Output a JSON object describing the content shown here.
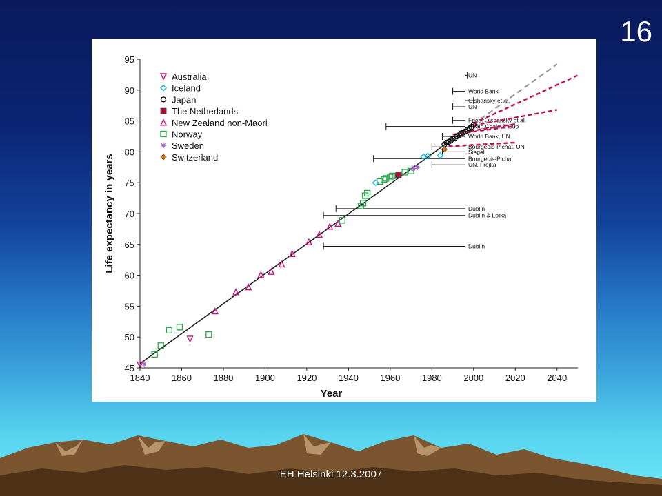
{
  "slide": {
    "number": "16",
    "footer": "EH Helsinki 12.3.2007"
  },
  "colors": {
    "australia": "#c2187a",
    "iceland": "#1fb4d6",
    "japan": "#111111",
    "netherlands": "#b0103a",
    "nz": "#c2187a",
    "norway": "#2aa84a",
    "sweden": "#a06bc0",
    "switzerland": "#e07a10",
    "trend": "#222222",
    "projection": "#b8145a"
  },
  "chart_data": {
    "type": "scatter",
    "xlabel": "Year",
    "ylabel": "Life expectancy in years",
    "xlim": [
      1840,
      2050
    ],
    "ylim": [
      45,
      95
    ],
    "xticks": [
      1840,
      1860,
      1880,
      1900,
      1920,
      1940,
      1960,
      1980,
      2000,
      2020,
      2040
    ],
    "yticks": [
      45,
      50,
      55,
      60,
      65,
      70,
      75,
      80,
      85,
      90,
      95
    ],
    "legend_position": "top-left",
    "legend": [
      {
        "key": "australia",
        "label": "Australia",
        "marker": "triangle-down"
      },
      {
        "key": "iceland",
        "label": "Iceland",
        "marker": "diamond"
      },
      {
        "key": "japan",
        "label": "Japan",
        "marker": "circle"
      },
      {
        "key": "netherlands",
        "label": "The Netherlands",
        "marker": "square-filled"
      },
      {
        "key": "nz",
        "label": "New Zealand non-Maori",
        "marker": "triangle-up"
      },
      {
        "key": "norway",
        "label": "Norway",
        "marker": "square"
      },
      {
        "key": "sweden",
        "label": "Sweden",
        "marker": "star"
      },
      {
        "key": "switzerland",
        "label": "Switzerland",
        "marker": "diamond-filled"
      }
    ],
    "series": [
      {
        "key": "australia",
        "points": [
          [
            1864,
            49.7
          ],
          [
            1840,
            45.5
          ]
        ]
      },
      {
        "key": "nz",
        "points": [
          [
            1876,
            54.2
          ],
          [
            1886,
            57.3
          ],
          [
            1892,
            58.1
          ],
          [
            1898,
            60.1
          ],
          [
            1903,
            60.6
          ],
          [
            1908,
            61.8
          ],
          [
            1913,
            63.5
          ],
          [
            1921,
            65.4
          ],
          [
            1926,
            66.6
          ],
          [
            1931,
            67.9
          ],
          [
            1935,
            68.4
          ]
        ]
      },
      {
        "key": "norway",
        "points": [
          [
            1847,
            47.2
          ],
          [
            1850,
            48.6
          ],
          [
            1854,
            51.1
          ],
          [
            1859,
            51.6
          ],
          [
            1873,
            50.4
          ],
          [
            1937,
            68.9
          ],
          [
            1946,
            71.2
          ],
          [
            1947,
            71.7
          ],
          [
            1948,
            72.9
          ],
          [
            1949,
            73.3
          ],
          [
            1955,
            75.2
          ],
          [
            1957,
            75.5
          ],
          [
            1958,
            75.7
          ],
          [
            1960,
            75.9
          ],
          [
            1961,
            76.1
          ],
          [
            1967,
            76.7
          ],
          [
            1970,
            76.9
          ]
        ]
      },
      {
        "key": "iceland",
        "points": [
          [
            1953,
            75.0
          ],
          [
            1976,
            79.2
          ],
          [
            1978,
            79.3
          ],
          [
            1984,
            79.4
          ]
        ]
      },
      {
        "key": "netherlands",
        "points": [
          [
            1964,
            76.3
          ]
        ]
      },
      {
        "key": "sweden",
        "points": [
          [
            1842,
            45.6
          ],
          [
            1971,
            77.3
          ],
          [
            1973,
            77.5
          ]
        ]
      },
      {
        "key": "switzerland",
        "points": [
          [
            1986,
            80.4
          ]
        ]
      },
      {
        "key": "japan",
        "points": [
          [
            1986,
            81.2
          ],
          [
            1987,
            81.5
          ],
          [
            1988,
            81.6
          ],
          [
            1989,
            81.8
          ],
          [
            1990,
            82.1
          ],
          [
            1991,
            82.2
          ],
          [
            1992,
            82.5
          ],
          [
            1993,
            82.7
          ],
          [
            1994,
            83.0
          ],
          [
            1995,
            83.1
          ],
          [
            1996,
            83.3
          ],
          [
            1997,
            83.6
          ],
          [
            1998,
            83.8
          ],
          [
            1999,
            84.0
          ],
          [
            2000,
            84.4
          ]
        ]
      }
    ],
    "trend_line": {
      "x": [
        1840,
        2000
      ],
      "y": [
        45.7,
        84.5
      ],
      "extension_x": [
        2000,
        2040
      ],
      "extension_y": [
        84.5,
        94.2
      ]
    },
    "projections": [
      {
        "x": [
          2000,
          2050
        ],
        "y": [
          84.6,
          92.4
        ]
      },
      {
        "x": [
          2000,
          2040
        ],
        "y": [
          84.3,
          86.8
        ]
      },
      {
        "x": [
          1990,
          2020
        ],
        "y": [
          82.8,
          84.2
        ]
      },
      {
        "x": [
          1995,
          2020
        ],
        "y": [
          83.2,
          84.5
        ]
      },
      {
        "x": [
          1988,
          2020
        ],
        "y": [
          80.9,
          81.5
        ]
      }
    ],
    "claims": [
      {
        "label": "UN",
        "y": 92.4,
        "x_start": 1997
      },
      {
        "label": "World Bank",
        "y": 89.8,
        "x_start": 1990
      },
      {
        "label": "Olshansky et al.",
        "y": 88.3,
        "x_start": 2000
      },
      {
        "label": "UN",
        "y": 87.3,
        "x_start": 1990
      },
      {
        "label": "Fries, Olshansky et al.",
        "y": 85.1,
        "x_start": 1990
      },
      {
        "label": "Coale  Coale & Guo",
        "y": 84.1,
        "x_start": 1958
      },
      {
        "label": "World Bank, UN",
        "y": 82.5,
        "x_start": 1985
      },
      {
        "label": "Bourgeois-Pichat, UN",
        "y": 80.8,
        "x_start": 1980
      },
      {
        "label": "Siegel",
        "y": 80.0,
        "x_start": 1985
      },
      {
        "label": "Bourgeois-Pichat",
        "y": 78.9,
        "x_start": 1952
      },
      {
        "label": "UN, Frejka",
        "y": 77.9,
        "x_start": 1980
      },
      {
        "label": "Dublin",
        "y": 70.8,
        "x_start": 1934
      },
      {
        "label": "Dublin & Lotka",
        "y": 69.7,
        "x_start": 1928
      },
      {
        "label": "Dublin",
        "y": 64.7,
        "x_start": 1928
      }
    ]
  }
}
